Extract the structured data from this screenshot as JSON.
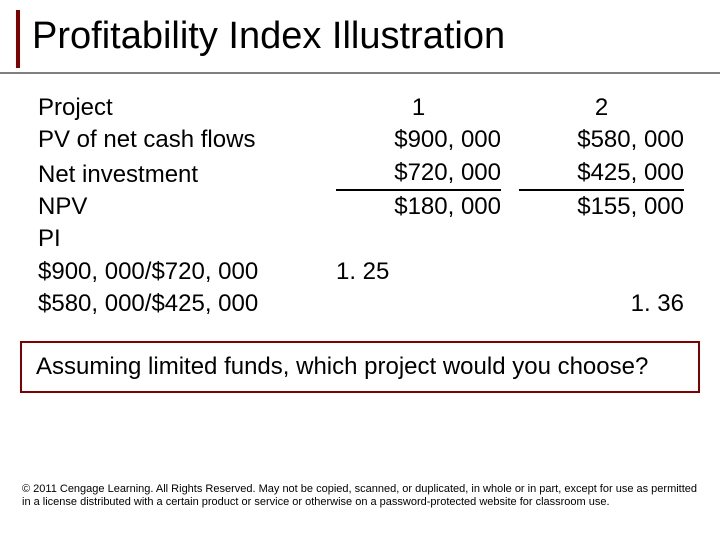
{
  "title": "Profitability Index Illustration",
  "colors": {
    "accent": "#800000",
    "rule": "#808080",
    "text": "#000000",
    "background": "#ffffff"
  },
  "typography": {
    "title_fontsize": 38,
    "body_fontsize": 24,
    "copyright_fontsize": 11,
    "family": "Arial"
  },
  "table": {
    "header": {
      "label": "Project",
      "col1": "1",
      "col2": "2"
    },
    "rows": [
      {
        "label": "PV of net cash flows",
        "col1": "$900, 000",
        "col2": "$580, 000",
        "underline": false
      },
      {
        "label": "Net investment",
        "col1": "$720, 000",
        "col2": "$425, 000",
        "underline": true
      },
      {
        "label": "NPV",
        "col1": "$180, 000",
        "col2": "$155, 000",
        "underline": false
      }
    ],
    "pi_label": "PI",
    "pi_lines": [
      {
        "label": "$900, 000/$720, 000",
        "col1": "1. 25",
        "col2": ""
      },
      {
        "label": "$580, 000/$425, 000",
        "col1": "",
        "col2": "1. 36"
      }
    ]
  },
  "question": "Assuming limited funds, which project would you choose?",
  "copyright": "© 2011 Cengage Learning.  All Rights Reserved.  May not be copied, scanned, or duplicated, in whole or in part, except for use as permitted in a license distributed with a certain product or service or otherwise on a password-protected website for classroom use."
}
